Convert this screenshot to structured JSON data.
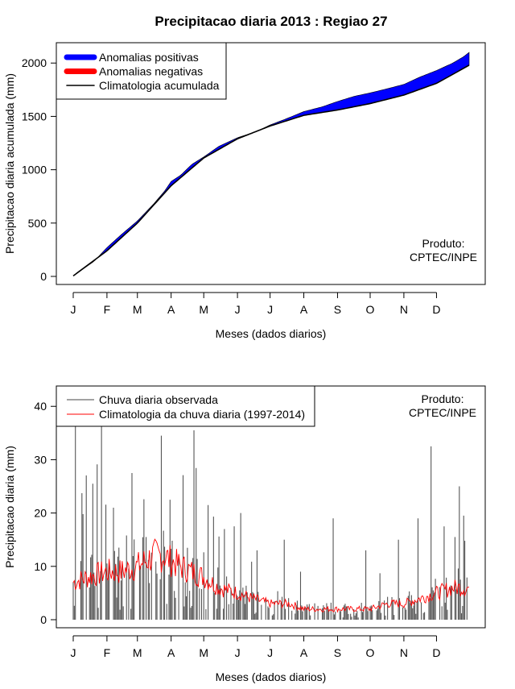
{
  "title": "Precipitacao diaria 2013 : Regiao 27",
  "colors": {
    "positive": "#0000ff",
    "negative": "#ff0000",
    "climatology": "#000000",
    "observed": "#555555",
    "clim_daily": "#ff0000"
  },
  "chart_data": [
    {
      "type": "area",
      "ylabel": "Precipitacao diaria acumulada (mm)",
      "xlabel": "Meses (dados diarios)",
      "month_ticks": [
        "J",
        "F",
        "M",
        "A",
        "M",
        "J",
        "J",
        "A",
        "S",
        "O",
        "N",
        "D"
      ],
      "month_start_days": [
        1,
        32,
        60,
        91,
        121,
        152,
        182,
        213,
        244,
        274,
        305,
        335
      ],
      "ylim": [
        0,
        2100
      ],
      "yticks": [
        0,
        500,
        1000,
        1500,
        2000
      ],
      "legend_position": "top-left",
      "legend": [
        {
          "label": "Anomalias positivas",
          "style": "thick-blue"
        },
        {
          "label": "Anomalias negativas",
          "style": "thick-red"
        },
        {
          "label": "Climatologia acumulada",
          "style": "line-black"
        }
      ],
      "note": [
        "Produto:",
        "CPTEC/INPE"
      ],
      "climatology_days": [
        1,
        32,
        60,
        91,
        121,
        152,
        182,
        213,
        244,
        274,
        305,
        335,
        365
      ],
      "climatology_mm": [
        5,
        240,
        500,
        850,
        1110,
        1290,
        1410,
        1510,
        1560,
        1620,
        1700,
        1810,
        1980
      ],
      "observed_days": [
        1,
        20,
        32,
        45,
        60,
        75,
        85,
        91,
        100,
        110,
        121,
        135,
        152,
        170,
        182,
        195,
        213,
        230,
        244,
        260,
        274,
        290,
        305,
        320,
        335,
        350,
        360,
        365
      ],
      "observed_mm": [
        5,
        140,
        270,
        390,
        520,
        680,
        800,
        890,
        950,
        1050,
        1120,
        1220,
        1300,
        1360,
        1420,
        1470,
        1545,
        1590,
        1640,
        1690,
        1720,
        1760,
        1800,
        1870,
        1930,
        2000,
        2060,
        2100
      ]
    },
    {
      "type": "bar",
      "ylabel": "Precipitacao diaria (mm)",
      "xlabel": "Meses (dados diarios)",
      "month_ticks": [
        "J",
        "F",
        "M",
        "A",
        "M",
        "J",
        "J",
        "A",
        "S",
        "O",
        "N",
        "D"
      ],
      "ylim": [
        0,
        42
      ],
      "yticks": [
        0,
        10,
        20,
        30,
        40
      ],
      "legend_position": "top-left",
      "legend": [
        {
          "label": "Chuva diaria observada",
          "style": "line-gray"
        },
        {
          "label": "Climatologia da chuva diaria (1997-2014)",
          "style": "line-red"
        }
      ],
      "note": [
        "Produto:",
        "CPTEC/INPE"
      ],
      "notable_peaks": [
        {
          "day": 3,
          "value": 42
        },
        {
          "day": 8,
          "value": 11
        },
        {
          "day": 19,
          "value": 25.5
        },
        {
          "day": 27,
          "value": 39
        },
        {
          "day": 38,
          "value": 21
        },
        {
          "day": 55,
          "value": 27.5
        },
        {
          "day": 68,
          "value": 15.5
        },
        {
          "day": 82,
          "value": 34.5
        },
        {
          "day": 90,
          "value": 22.5
        },
        {
          "day": 112,
          "value": 35.5
        },
        {
          "day": 125,
          "value": 21.5
        },
        {
          "day": 140,
          "value": 17
        },
        {
          "day": 155,
          "value": 20
        },
        {
          "day": 170,
          "value": 13
        },
        {
          "day": 195,
          "value": 15
        },
        {
          "day": 210,
          "value": 9
        },
        {
          "day": 240,
          "value": 19
        },
        {
          "day": 270,
          "value": 13
        },
        {
          "day": 300,
          "value": 15
        },
        {
          "day": 318,
          "value": 19
        },
        {
          "day": 330,
          "value": 32.5
        },
        {
          "day": 352,
          "value": 15.5
        },
        {
          "day": 356,
          "value": 25
        },
        {
          "day": 360,
          "value": 19.5
        }
      ],
      "climatology_days": [
        1,
        15,
        32,
        45,
        60,
        75,
        85,
        91,
        100,
        110,
        121,
        135,
        152,
        165,
        182,
        200,
        213,
        230,
        244,
        260,
        274,
        290,
        305,
        320,
        335,
        350,
        365
      ],
      "climatology_mm": [
        7,
        8,
        9,
        9,
        10,
        12,
        12,
        11,
        10,
        9,
        8,
        6,
        5,
        4,
        3,
        3,
        2,
        2,
        2,
        2,
        2,
        3,
        3,
        4,
        5,
        6,
        6
      ]
    }
  ]
}
